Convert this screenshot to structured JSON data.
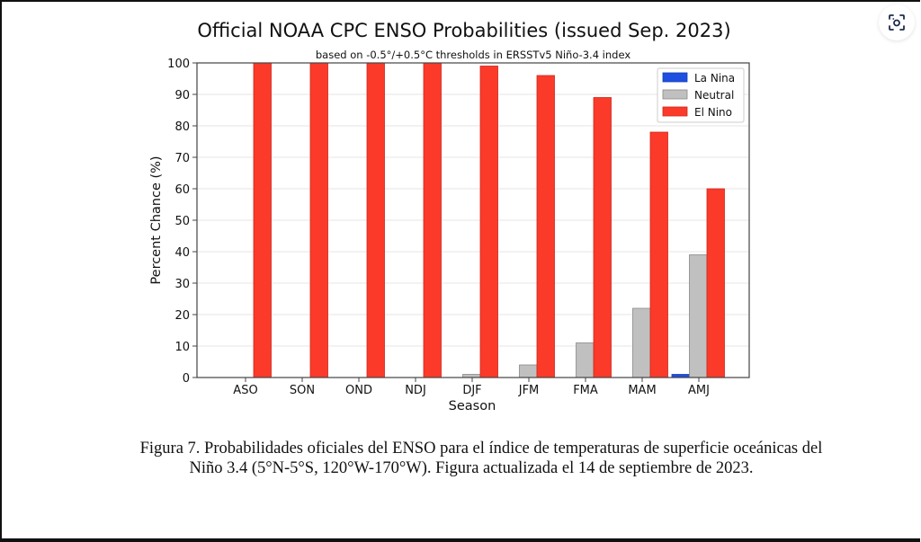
{
  "chart_data": {
    "type": "bar",
    "title": "Official NOAA CPC ENSO Probabilities (issued Sep. 2023)",
    "subtitle": "based on -0.5°/+0.5°C thresholds in ERSSTv5 Niño-3.4 index",
    "xlabel": "Season",
    "ylabel": "Percent Chance (%)",
    "ylim": [
      0,
      100
    ],
    "yticks": [
      0,
      10,
      20,
      30,
      40,
      50,
      60,
      70,
      80,
      90,
      100
    ],
    "grid": "horizontal",
    "legend_position": "top-right",
    "categories": [
      "ASO",
      "SON",
      "OND",
      "NDJ",
      "DJF",
      "JFM",
      "FMA",
      "MAM",
      "AMJ"
    ],
    "series": [
      {
        "name": "La Nina",
        "color": "#1f4fe0",
        "values": [
          0,
          0,
          0,
          0,
          0,
          0,
          0,
          0,
          1
        ]
      },
      {
        "name": "Neutral",
        "color": "#c0c0c0",
        "values": [
          0,
          0,
          0,
          0,
          1,
          4,
          11,
          22,
          39
        ]
      },
      {
        "name": "El Nino",
        "color": "#fc3a2a",
        "values": [
          100,
          100,
          100,
          100,
          99,
          96,
          89,
          78,
          60
        ]
      }
    ]
  },
  "caption": {
    "line1": "Figura 7. Probabilidades oficiales del ENSO para el índice de temperaturas de superficie oceánicas del",
    "line2": "Niño 3.4 (5°N-5°S, 120°W-170°W). Figura actualizada el 14 de septiembre de 2023."
  },
  "overlay": {
    "icon": "screenshot-search-icon"
  }
}
